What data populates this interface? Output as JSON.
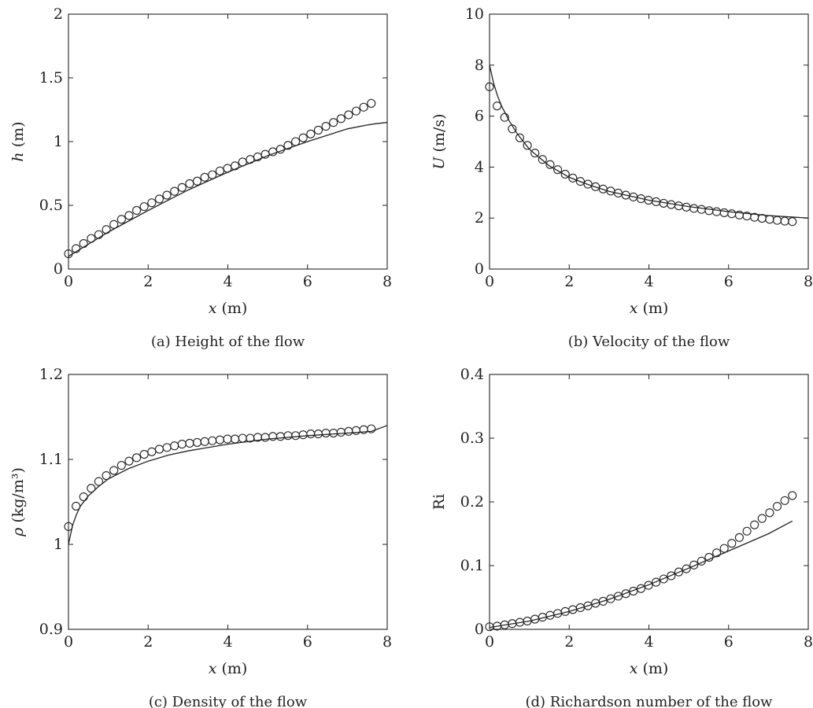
{
  "chart_data": [
    {
      "id": "a",
      "type": "line",
      "caption": "(a) Height of the flow",
      "xlabel_var": "x",
      "xlabel_unit": " (m)",
      "ylabel_var": "h",
      "ylabel_unit": " (m)",
      "xlim": [
        0,
        8
      ],
      "ylim": [
        0,
        2
      ],
      "xticks": [
        0,
        2,
        4,
        6,
        8
      ],
      "yticks": [
        0,
        0.5,
        1,
        1.5,
        2
      ],
      "xtick_labels": [
        "0",
        "2",
        "4",
        "6",
        "8"
      ],
      "ytick_labels": [
        "0",
        "0.5",
        "1",
        "1.5",
        "2"
      ],
      "series": [
        {
          "style": "line",
          "x": [
            0,
            1,
            2,
            3,
            4,
            5,
            6,
            7,
            7.5,
            7.7,
            8
          ],
          "y": [
            0.1,
            0.29,
            0.46,
            0.62,
            0.76,
            0.89,
            1.0,
            1.1,
            1.13,
            1.14,
            1.15
          ]
        },
        {
          "style": "circle",
          "x": [
            0,
            0.19,
            0.38,
            0.57,
            0.76,
            0.95,
            1.14,
            1.33,
            1.52,
            1.71,
            1.9,
            2.09,
            2.28,
            2.47,
            2.66,
            2.85,
            3.04,
            3.23,
            3.42,
            3.61,
            3.8,
            3.99,
            4.18,
            4.37,
            4.56,
            4.75,
            4.94,
            5.13,
            5.32,
            5.51,
            5.7,
            5.89,
            6.08,
            6.27,
            6.46,
            6.65,
            6.84,
            7.03,
            7.22,
            7.41,
            7.6
          ],
          "y": [
            0.12,
            0.16,
            0.2,
            0.24,
            0.27,
            0.31,
            0.35,
            0.39,
            0.42,
            0.46,
            0.49,
            0.52,
            0.55,
            0.58,
            0.61,
            0.64,
            0.67,
            0.69,
            0.72,
            0.74,
            0.77,
            0.79,
            0.81,
            0.84,
            0.86,
            0.88,
            0.9,
            0.92,
            0.94,
            0.97,
            1.0,
            1.03,
            1.06,
            1.09,
            1.12,
            1.15,
            1.18,
            1.21,
            1.24,
            1.27,
            1.3
          ]
        }
      ]
    },
    {
      "id": "b",
      "type": "line",
      "caption": "(b) Velocity of the flow",
      "xlabel_var": "x",
      "xlabel_unit": " (m)",
      "ylabel_var": "U",
      "ylabel_unit": " (m/s)",
      "xlim": [
        0,
        8
      ],
      "ylim": [
        0,
        10
      ],
      "xticks": [
        0,
        2,
        4,
        6,
        8
      ],
      "yticks": [
        0,
        2,
        4,
        6,
        8,
        10
      ],
      "xtick_labels": [
        "0",
        "2",
        "4",
        "6",
        "8"
      ],
      "ytick_labels": [
        "0",
        "2",
        "4",
        "6",
        "8",
        "10"
      ],
      "series": [
        {
          "style": "line",
          "x": [
            0,
            0.1,
            0.2,
            0.3,
            0.5,
            0.7,
            1,
            1.5,
            2,
            2.5,
            3,
            4,
            5,
            6,
            7,
            8
          ],
          "y": [
            8.0,
            7.3,
            6.8,
            6.4,
            5.8,
            5.3,
            4.7,
            4.05,
            3.6,
            3.3,
            3.05,
            2.7,
            2.45,
            2.25,
            2.1,
            2.0
          ]
        },
        {
          "style": "circle",
          "x": [
            0,
            0.19,
            0.38,
            0.57,
            0.76,
            0.95,
            1.14,
            1.33,
            1.52,
            1.71,
            1.9,
            2.09,
            2.28,
            2.47,
            2.66,
            2.85,
            3.04,
            3.23,
            3.42,
            3.61,
            3.8,
            3.99,
            4.18,
            4.37,
            4.56,
            4.75,
            4.94,
            5.13,
            5.32,
            5.51,
            5.7,
            5.89,
            6.08,
            6.27,
            6.46,
            6.65,
            6.84,
            7.03,
            7.22,
            7.41,
            7.6
          ],
          "y": [
            7.15,
            6.4,
            5.95,
            5.5,
            5.15,
            4.85,
            4.55,
            4.3,
            4.1,
            3.9,
            3.72,
            3.57,
            3.44,
            3.33,
            3.23,
            3.14,
            3.06,
            2.98,
            2.9,
            2.83,
            2.76,
            2.7,
            2.64,
            2.58,
            2.53,
            2.48,
            2.43,
            2.38,
            2.34,
            2.29,
            2.25,
            2.21,
            2.17,
            2.12,
            2.08,
            2.03,
            1.99,
            1.95,
            1.91,
            1.88,
            1.86
          ]
        }
      ]
    },
    {
      "id": "c",
      "type": "line",
      "caption": "(c) Density of the flow",
      "xlabel_var": "x",
      "xlabel_unit": " (m)",
      "ylabel_var": "ρ",
      "ylabel_unit": " (kg/m³)",
      "xlim": [
        0,
        8
      ],
      "ylim": [
        0.9,
        1.2
      ],
      "xticks": [
        0,
        2,
        4,
        6,
        8
      ],
      "yticks": [
        0.9,
        1.0,
        1.1,
        1.2
      ],
      "xtick_labels": [
        "0",
        "2",
        "4",
        "6",
        "8"
      ],
      "ytick_labels": [
        "0.9",
        "1",
        "1.1",
        "1.2"
      ],
      "series": [
        {
          "style": "line",
          "x": [
            0,
            0.1,
            0.2,
            0.3,
            0.5,
            0.75,
            1,
            1.5,
            2,
            2.5,
            3,
            4,
            5,
            6,
            7,
            7.6,
            8
          ],
          "y": [
            1.0,
            1.022,
            1.035,
            1.045,
            1.057,
            1.068,
            1.077,
            1.089,
            1.098,
            1.105,
            1.11,
            1.118,
            1.124,
            1.128,
            1.131,
            1.133,
            1.14
          ]
        },
        {
          "style": "circle",
          "x": [
            0,
            0.19,
            0.38,
            0.57,
            0.76,
            0.95,
            1.14,
            1.33,
            1.52,
            1.71,
            1.9,
            2.09,
            2.28,
            2.47,
            2.66,
            2.85,
            3.04,
            3.23,
            3.42,
            3.61,
            3.8,
            3.99,
            4.18,
            4.37,
            4.56,
            4.75,
            4.94,
            5.13,
            5.32,
            5.51,
            5.7,
            5.89,
            6.08,
            6.27,
            6.46,
            6.65,
            6.84,
            7.03,
            7.22,
            7.41,
            7.6
          ],
          "y": [
            1.021,
            1.045,
            1.056,
            1.066,
            1.074,
            1.081,
            1.087,
            1.093,
            1.098,
            1.102,
            1.106,
            1.109,
            1.112,
            1.114,
            1.116,
            1.118,
            1.119,
            1.12,
            1.121,
            1.122,
            1.123,
            1.124,
            1.124,
            1.125,
            1.125,
            1.126,
            1.126,
            1.127,
            1.127,
            1.128,
            1.128,
            1.129,
            1.13,
            1.13,
            1.131,
            1.131,
            1.132,
            1.133,
            1.134,
            1.135,
            1.136
          ]
        }
      ]
    },
    {
      "id": "d",
      "type": "line",
      "caption": "(d) Richardson number of the flow",
      "xlabel_var": "x",
      "xlabel_unit": " (m)",
      "ylabel_var": "",
      "ylabel_unit": "Ri",
      "xlim": [
        0,
        8
      ],
      "ylim": [
        0,
        0.4
      ],
      "xticks": [
        0,
        2,
        4,
        6,
        8
      ],
      "yticks": [
        0,
        0.1,
        0.2,
        0.3,
        0.4
      ],
      "xtick_labels": [
        "0",
        "2",
        "4",
        "6",
        "8"
      ],
      "ytick_labels": [
        "0",
        "0.1",
        "0.2",
        "0.3",
        "0.4"
      ],
      "series": [
        {
          "style": "line",
          "x": [
            0,
            1,
            2,
            3,
            4,
            5,
            6,
            7,
            7.6
          ],
          "y": [
            0.003,
            0.013,
            0.028,
            0.047,
            0.07,
            0.096,
            0.123,
            0.15,
            0.17
          ]
        },
        {
          "style": "circle",
          "x": [
            0,
            0.19,
            0.38,
            0.57,
            0.76,
            0.95,
            1.14,
            1.33,
            1.52,
            1.71,
            1.9,
            2.09,
            2.28,
            2.47,
            2.66,
            2.85,
            3.04,
            3.23,
            3.42,
            3.61,
            3.8,
            3.99,
            4.18,
            4.37,
            4.56,
            4.75,
            4.94,
            5.13,
            5.32,
            5.51,
            5.7,
            5.89,
            6.08,
            6.27,
            6.46,
            6.65,
            6.84,
            7.03,
            7.22,
            7.41,
            7.6
          ],
          "y": [
            0.004,
            0.005,
            0.007,
            0.009,
            0.011,
            0.013,
            0.016,
            0.019,
            0.022,
            0.025,
            0.028,
            0.031,
            0.034,
            0.037,
            0.041,
            0.044,
            0.048,
            0.052,
            0.056,
            0.06,
            0.064,
            0.069,
            0.074,
            0.079,
            0.084,
            0.09,
            0.095,
            0.101,
            0.107,
            0.113,
            0.12,
            0.127,
            0.135,
            0.144,
            0.154,
            0.164,
            0.174,
            0.183,
            0.193,
            0.202,
            0.21
          ]
        }
      ]
    }
  ]
}
